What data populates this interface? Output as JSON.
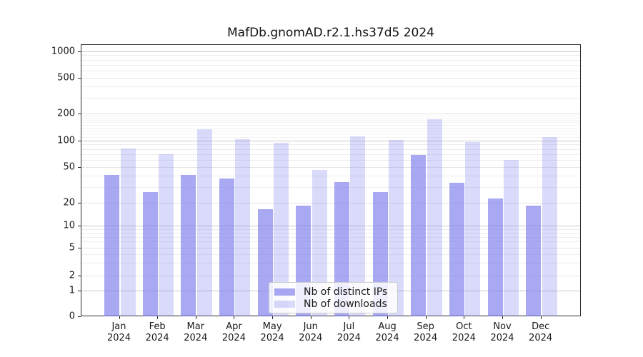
{
  "title": "MafDb.gnomAD.r2.1.hs37d5 2024",
  "colors": {
    "bar_base": "#7a7aed",
    "ips_alpha": 0.65,
    "downloads_alpha": 0.28,
    "grid_major": "#c9c9c9",
    "grid_minor": "#ededed",
    "spine": "#2b2b2b",
    "text": "#1a1a1a"
  },
  "chart_data": {
    "type": "bar",
    "title": "MafDb.gnomAD.r2.1.hs37d5 2024",
    "categories": [
      "Jan 2024",
      "Feb 2024",
      "Mar 2024",
      "Apr 2024",
      "May 2024",
      "Jun 2024",
      "Jul 2024",
      "Aug 2024",
      "Sep 2024",
      "Oct 2024",
      "Nov 2024",
      "Dec 2024"
    ],
    "series": [
      {
        "name": "Nb of distinct IPs",
        "color": "#7a7aed",
        "alpha": 0.65,
        "values": [
          42,
          27,
          42,
          38,
          17,
          19,
          35,
          27,
          70,
          34,
          23,
          19
        ]
      },
      {
        "name": "Nb of downloads",
        "color": "#7a7aed",
        "alpha": 0.28,
        "values": [
          82,
          71,
          136,
          106,
          95,
          48,
          113,
          103,
          178,
          98,
          62,
          112
        ]
      }
    ],
    "xlabel": "",
    "ylabel": "",
    "y_scale": "symlog",
    "y_ticks": [
      0,
      1,
      2,
      5,
      10,
      20,
      50,
      100,
      200,
      500,
      1000
    ],
    "ylim": [
      0,
      1200
    ],
    "grid": true,
    "legend_position": "lower center"
  }
}
